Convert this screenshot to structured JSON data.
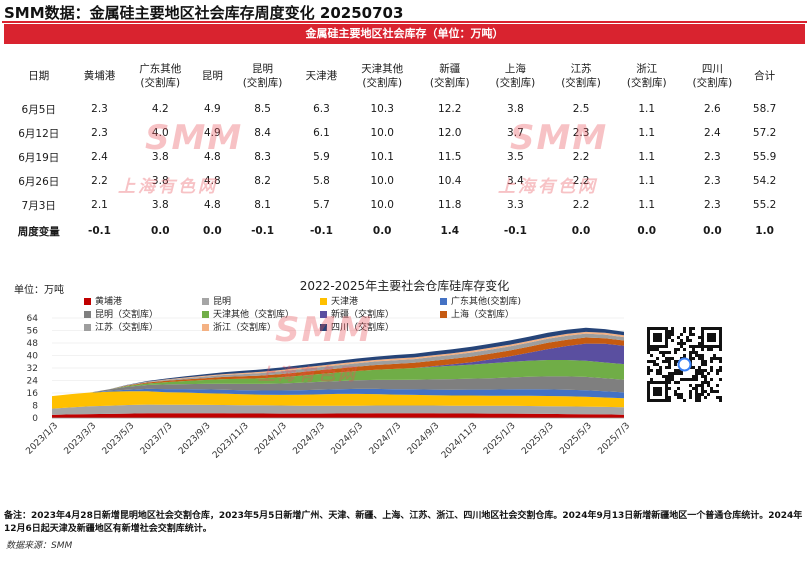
{
  "header": {
    "title": "SMM数据：金属硅主要地区社会库存周度变化 20250703",
    "banner": "金属硅主要地区社会库存（单位：万吨）"
  },
  "table": {
    "columns": [
      "日期",
      "黄埔港",
      "广东其他\n(交割库)",
      "昆明",
      "昆明\n(交割库)",
      "天津港",
      "天津其他\n(交割库)",
      "新疆\n(交割库)",
      "上海\n(交割库)",
      "江苏\n(交割库)",
      "浙江\n(交割库)",
      "四川\n(交割库)",
      "合计"
    ],
    "rows": [
      [
        "6月5日",
        "2.3",
        "4.2",
        "4.9",
        "8.5",
        "6.3",
        "10.3",
        "12.2",
        "3.8",
        "2.5",
        "1.1",
        "2.6",
        "58.7"
      ],
      [
        "6月12日",
        "2.3",
        "4.0",
        "4.9",
        "8.4",
        "6.1",
        "10.0",
        "12.0",
        "3.7",
        "2.3",
        "1.1",
        "2.4",
        "57.2"
      ],
      [
        "6月19日",
        "2.4",
        "3.8",
        "4.8",
        "8.3",
        "5.9",
        "10.1",
        "11.5",
        "3.5",
        "2.2",
        "1.1",
        "2.3",
        "55.9"
      ],
      [
        "6月26日",
        "2.2",
        "3.8",
        "4.8",
        "8.2",
        "5.8",
        "10.0",
        "10.4",
        "3.4",
        "2.2",
        "1.1",
        "2.3",
        "54.2"
      ],
      [
        "7月3日",
        "2.1",
        "3.8",
        "4.8",
        "8.1",
        "5.7",
        "10.0",
        "11.8",
        "3.3",
        "2.2",
        "1.1",
        "2.3",
        "55.2"
      ]
    ],
    "change_row": [
      "周度变量",
      "-0.1",
      "0.0",
      "0.0",
      "-0.1",
      "-0.1",
      "0.0",
      "1.4",
      "-0.1",
      "0.0",
      "0.0",
      "0.0",
      "1.0"
    ]
  },
  "watermark": {
    "logo": "SMM",
    "cn": "上海有色网"
  },
  "chart_data": {
    "type": "area",
    "stacked": true,
    "title": "2022-2025年主要社会仓库硅库存变化",
    "ylabel": "单位：万吨",
    "ylim": [
      0,
      64
    ],
    "yticks": [
      0,
      8,
      16,
      24,
      32,
      40,
      48,
      56,
      64
    ],
    "x_tick_labels": [
      "2023/1/3",
      "2023/3/3",
      "2023/5/3",
      "2023/7/3",
      "2023/9/3",
      "2023/11/3",
      "2024/1/3",
      "2024/3/3",
      "2024/5/3",
      "2024/7/3",
      "2024/9/3",
      "2024/11/3",
      "2025/1/3",
      "2025/3/3",
      "2025/5/3",
      "2025/7/3"
    ],
    "legend_placement": "top-left",
    "colors": [
      "#c00000",
      "#a5a5a5",
      "#ffc000",
      "#4472c4",
      "#7f7f7f",
      "#70ad47",
      "#5a4fa0",
      "#c55a11",
      "#9e9e9e",
      "#f4b183",
      "#264478"
    ],
    "x": [
      "2023/1",
      "2023/2",
      "2023/3",
      "2023/4",
      "2023/5",
      "2023/6",
      "2023/7",
      "2023/8",
      "2023/9",
      "2023/10",
      "2023/11",
      "2023/12",
      "2024/1",
      "2024/2",
      "2024/3",
      "2024/4",
      "2024/5",
      "2024/6",
      "2024/7",
      "2024/8",
      "2024/9",
      "2024/10",
      "2024/11",
      "2024/12",
      "2025/1",
      "2025/2",
      "2025/3",
      "2025/4",
      "2025/5",
      "2025/6",
      "2025/7"
    ],
    "series": [
      {
        "name": "黄埔港",
        "values": [
          2.0,
          2.3,
          2.5,
          2.6,
          2.8,
          3.0,
          3.0,
          3.1,
          3.0,
          3.0,
          2.9,
          2.9,
          2.8,
          2.8,
          2.8,
          2.9,
          2.9,
          3.0,
          3.0,
          3.0,
          3.0,
          2.9,
          2.9,
          2.8,
          2.8,
          2.7,
          2.6,
          2.5,
          2.4,
          2.3,
          2.1
        ]
      },
      {
        "name": "昆明",
        "values": [
          4.0,
          4.5,
          5.0,
          5.3,
          5.5,
          5.6,
          5.5,
          5.4,
          5.4,
          5.3,
          5.3,
          5.2,
          5.2,
          5.1,
          5.1,
          5.0,
          5.0,
          5.0,
          5.0,
          5.0,
          5.0,
          5.0,
          5.0,
          5.0,
          5.0,
          5.0,
          4.9,
          4.9,
          4.9,
          4.8,
          4.8
        ]
      },
      {
        "name": "天津港",
        "values": [
          8.0,
          8.5,
          8.8,
          9.0,
          8.8,
          8.5,
          8.0,
          7.8,
          7.5,
          7.3,
          7.0,
          6.8,
          6.8,
          7.0,
          7.2,
          7.5,
          7.5,
          7.3,
          7.0,
          6.8,
          6.6,
          6.5,
          6.5,
          6.5,
          6.5,
          6.6,
          6.6,
          6.5,
          6.3,
          6.0,
          5.7
        ]
      },
      {
        "name": "广东其他(交割库)",
        "values": [
          0.0,
          0.0,
          0.0,
          0.5,
          1.0,
          1.5,
          2.0,
          2.2,
          2.4,
          2.5,
          2.6,
          2.7,
          2.8,
          2.9,
          3.0,
          3.0,
          3.2,
          3.3,
          3.4,
          3.5,
          3.6,
          3.7,
          3.8,
          3.9,
          4.0,
          4.1,
          4.2,
          4.2,
          4.2,
          4.0,
          3.8
        ]
      },
      {
        "name": "昆明（交割库）",
        "values": [
          0.0,
          0.0,
          0.0,
          1.0,
          2.0,
          2.5,
          3.0,
          3.2,
          3.5,
          3.8,
          4.0,
          4.2,
          4.5,
          4.8,
          5.0,
          5.2,
          5.5,
          5.8,
          6.0,
          6.2,
          6.5,
          6.8,
          7.0,
          7.3,
          7.6,
          8.0,
          8.3,
          8.5,
          8.5,
          8.3,
          8.1
        ]
      },
      {
        "name": "天津其他（交割库）",
        "values": [
          0.0,
          0.0,
          0.0,
          0.0,
          0.5,
          1.0,
          1.5,
          2.0,
          2.5,
          3.0,
          3.3,
          3.6,
          4.0,
          4.5,
          5.0,
          5.5,
          6.0,
          6.5,
          7.0,
          7.5,
          8.0,
          8.5,
          9.0,
          9.5,
          10.0,
          10.3,
          10.5,
          10.5,
          10.3,
          10.1,
          10.0
        ]
      },
      {
        "name": "新疆（交割库）",
        "values": [
          0.0,
          0.0,
          0.0,
          0.0,
          0.0,
          0.0,
          0.0,
          0.0,
          0.0,
          0.0,
          0.0,
          0.0,
          0.0,
          0.0,
          0.0,
          0.0,
          0.0,
          0.0,
          0.0,
          0.0,
          0.5,
          1.0,
          1.5,
          2.5,
          3.5,
          5.0,
          7.0,
          9.0,
          11.0,
          12.0,
          11.8
        ]
      },
      {
        "name": "上海（交割库）",
        "values": [
          0.0,
          0.0,
          0.0,
          0.0,
          0.3,
          0.6,
          0.8,
          1.0,
          1.2,
          1.4,
          1.6,
          1.8,
          2.0,
          2.2,
          2.4,
          2.6,
          2.8,
          3.0,
          3.2,
          3.3,
          3.4,
          3.5,
          3.6,
          3.7,
          3.8,
          3.9,
          4.0,
          4.0,
          3.9,
          3.6,
          3.3
        ]
      },
      {
        "name": "江苏（交割库）",
        "values": [
          0.0,
          0.0,
          0.0,
          0.0,
          0.2,
          0.4,
          0.6,
          0.8,
          1.0,
          1.2,
          1.4,
          1.6,
          1.8,
          1.9,
          2.0,
          2.1,
          2.2,
          2.3,
          2.4,
          2.4,
          2.5,
          2.5,
          2.6,
          2.6,
          2.6,
          2.6,
          2.6,
          2.6,
          2.5,
          2.3,
          2.2
        ]
      },
      {
        "name": "浙江（交割库）",
        "values": [
          0.0,
          0.0,
          0.0,
          0.0,
          0.1,
          0.2,
          0.3,
          0.4,
          0.5,
          0.6,
          0.7,
          0.8,
          0.8,
          0.9,
          0.9,
          1.0,
          1.0,
          1.0,
          1.1,
          1.1,
          1.1,
          1.1,
          1.1,
          1.1,
          1.1,
          1.1,
          1.1,
          1.1,
          1.1,
          1.1,
          1.1
        ]
      },
      {
        "name": "四川（交割库）",
        "values": [
          0.0,
          0.0,
          0.0,
          0.0,
          0.2,
          0.4,
          0.6,
          0.8,
          1.0,
          1.2,
          1.4,
          1.5,
          1.6,
          1.7,
          1.8,
          1.9,
          2.0,
          2.1,
          2.2,
          2.3,
          2.4,
          2.5,
          2.6,
          2.6,
          2.7,
          2.7,
          2.7,
          2.7,
          2.6,
          2.4,
          2.3
        ]
      }
    ]
  },
  "footnote": "备注：2023年4月28日新增昆明地区社会交割仓库，2023年5月5日新增广州、天津、新疆、上海、江苏、浙江、四川地区社会交割仓库。2024年9月13日新增新疆地区一个普通仓库统计。2024年12月6日起天津及新疆地区有新增社会交割库统计。",
  "source": "数据来源：SMM"
}
